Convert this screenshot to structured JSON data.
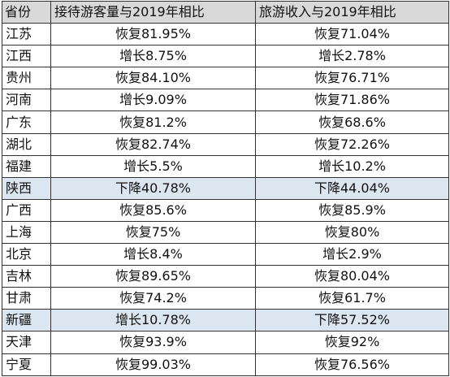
{
  "table": {
    "headers": {
      "province": "省份",
      "visitors": "接待游客量与2019年相比",
      "income": "旅游收入与2019年相比"
    },
    "rows": [
      {
        "province": "江苏",
        "visitors": "恢复81.95%",
        "income": "恢复71.04%",
        "highlight": false
      },
      {
        "province": "江西",
        "visitors": "增长8.75%",
        "income": "增长2.78%",
        "highlight": false
      },
      {
        "province": "贵州",
        "visitors": "恢复84.10%",
        "income": "恢复76.71%",
        "highlight": false
      },
      {
        "province": "河南",
        "visitors": "增长9.09%",
        "income": "恢复71.86%",
        "highlight": false
      },
      {
        "province": "广东",
        "visitors": "恢复81.2%",
        "income": "恢复68.6%",
        "highlight": false
      },
      {
        "province": "湖北",
        "visitors": "恢复82.74%",
        "income": "恢复72.26%",
        "highlight": false
      },
      {
        "province": "福建",
        "visitors": "增长5.5%",
        "income": "增长10.2%",
        "highlight": false
      },
      {
        "province": "陕西",
        "visitors": "下降40.78%",
        "income": "下降44.04%",
        "highlight": true
      },
      {
        "province": "广西",
        "visitors": "恢复85.6%",
        "income": "恢复85.9%",
        "highlight": false
      },
      {
        "province": "上海",
        "visitors": "恢复75%",
        "income": "恢复80%",
        "highlight": false
      },
      {
        "province": "北京",
        "visitors": "增长8.4%",
        "income": "增长2.9%",
        "highlight": false
      },
      {
        "province": "吉林",
        "visitors": "恢复89.65%",
        "income": "恢复80.04%",
        "highlight": false
      },
      {
        "province": "甘肃",
        "visitors": "恢复74.2%",
        "income": "恢复61.7%",
        "highlight": false
      },
      {
        "province": "新疆",
        "visitors": "增长10.78%",
        "income": "下降57.52%",
        "highlight": true
      },
      {
        "province": "天津",
        "visitors": "恢复93.9%",
        "income": "恢复92%",
        "highlight": false
      },
      {
        "province": "宁夏",
        "visitors": "恢复99.03%",
        "income": "恢复76.56%",
        "highlight": false
      }
    ]
  },
  "colors": {
    "header_bg": "#d9d9d9",
    "highlight_bg": "#dce6f1",
    "border": "#333333"
  }
}
